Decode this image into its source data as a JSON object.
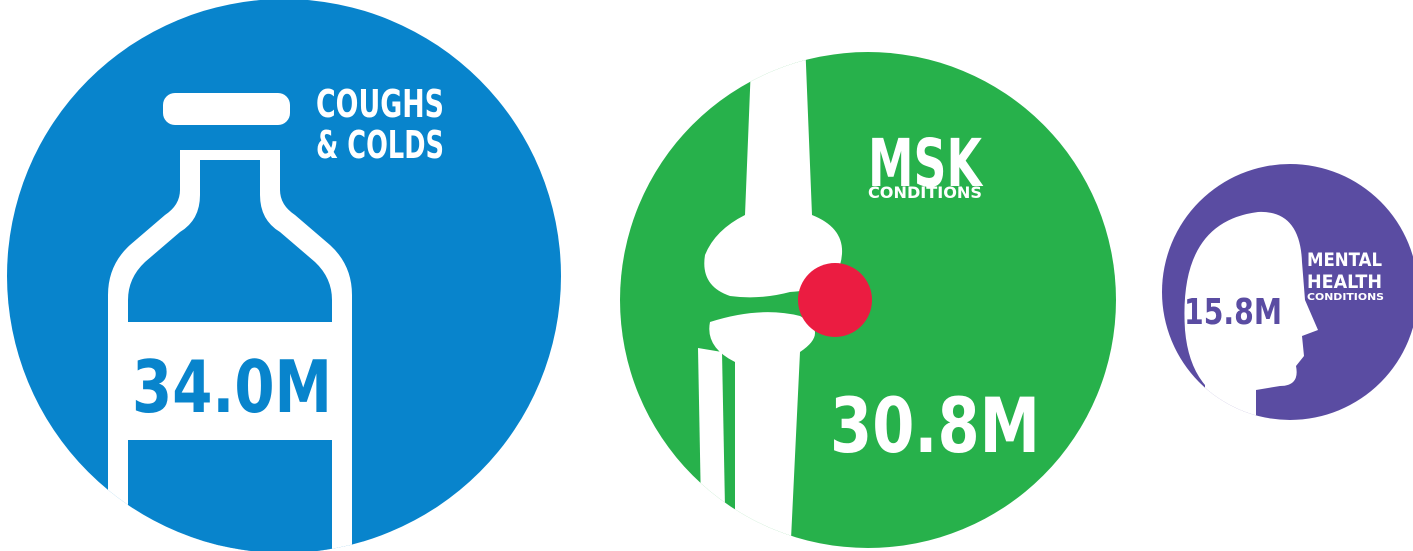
{
  "items": [
    {
      "label_lines": [
        "COUGHS",
        "& COLDS"
      ],
      "value": "34.0M"
    },
    {
      "label_lines": [
        "MSK",
        "CONDITIONS"
      ],
      "value": "30.8M"
    },
    {
      "label_lines": [
        "MENTAL",
        "HEALTH",
        "CONDITIONS"
      ],
      "value": "15.8M"
    }
  ]
}
